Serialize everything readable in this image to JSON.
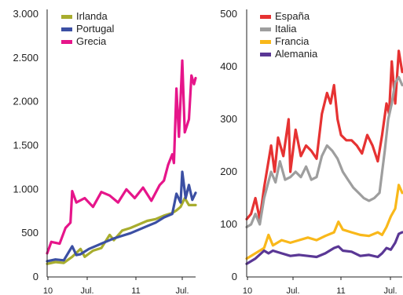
{
  "chart_data": [
    {
      "type": "line",
      "x_tick_labels": [
        "10",
        "Jul.",
        "11",
        "Jul."
      ],
      "y_ticks": [
        0,
        500,
        1000,
        1500,
        2000,
        2500,
        3000
      ],
      "y_tick_labels": [
        "0",
        "500",
        "1.000",
        "1.500",
        "2.000",
        "2.500",
        "3.000"
      ],
      "ylim": [
        0,
        3000
      ],
      "x_range": [
        0,
        1.78
      ],
      "legend_position": "top-left",
      "series": [
        {
          "name": "Irlanda",
          "color": "#a8ad2e",
          "points": [
            [
              0,
              150
            ],
            [
              0.1,
              170
            ],
            [
              0.2,
              160
            ],
            [
              0.3,
              230
            ],
            [
              0.4,
              320
            ],
            [
              0.45,
              230
            ],
            [
              0.55,
              300
            ],
            [
              0.65,
              330
            ],
            [
              0.75,
              480
            ],
            [
              0.8,
              420
            ],
            [
              0.9,
              530
            ],
            [
              1.0,
              560
            ],
            [
              1.1,
              600
            ],
            [
              1.2,
              640
            ],
            [
              1.3,
              660
            ],
            [
              1.4,
              700
            ],
            [
              1.5,
              730
            ],
            [
              1.55,
              760
            ],
            [
              1.6,
              800
            ],
            [
              1.65,
              900
            ],
            [
              1.7,
              820
            ],
            [
              1.78,
              820
            ]
          ]
        },
        {
          "name": "Portugal",
          "color": "#3b4fa3",
          "points": [
            [
              0,
              180
            ],
            [
              0.1,
              200
            ],
            [
              0.2,
              190
            ],
            [
              0.3,
              350
            ],
            [
              0.35,
              250
            ],
            [
              0.4,
              260
            ],
            [
              0.5,
              320
            ],
            [
              0.6,
              360
            ],
            [
              0.7,
              400
            ],
            [
              0.8,
              440
            ],
            [
              0.9,
              470
            ],
            [
              1.0,
              500
            ],
            [
              1.1,
              540
            ],
            [
              1.2,
              580
            ],
            [
              1.3,
              620
            ],
            [
              1.4,
              680
            ],
            [
              1.5,
              720
            ],
            [
              1.55,
              950
            ],
            [
              1.6,
              850
            ],
            [
              1.62,
              1200
            ],
            [
              1.66,
              900
            ],
            [
              1.7,
              1050
            ],
            [
              1.74,
              880
            ],
            [
              1.78,
              960
            ]
          ]
        },
        {
          "name": "Grecia",
          "color": "#e6158a",
          "points": [
            [
              0,
              270
            ],
            [
              0.05,
              400
            ],
            [
              0.15,
              380
            ],
            [
              0.22,
              560
            ],
            [
              0.28,
              620
            ],
            [
              0.3,
              980
            ],
            [
              0.35,
              850
            ],
            [
              0.45,
              900
            ],
            [
              0.55,
              800
            ],
            [
              0.65,
              970
            ],
            [
              0.75,
              930
            ],
            [
              0.85,
              850
            ],
            [
              0.95,
              1000
            ],
            [
              1.05,
              900
            ],
            [
              1.15,
              1020
            ],
            [
              1.25,
              870
            ],
            [
              1.35,
              1050
            ],
            [
              1.4,
              1100
            ],
            [
              1.45,
              1280
            ],
            [
              1.5,
              1400
            ],
            [
              1.52,
              1300
            ],
            [
              1.55,
              2150
            ],
            [
              1.58,
              1600
            ],
            [
              1.62,
              2470
            ],
            [
              1.65,
              1650
            ],
            [
              1.7,
              1800
            ],
            [
              1.73,
              2300
            ],
            [
              1.76,
              2200
            ],
            [
              1.78,
              2270
            ]
          ]
        }
      ]
    },
    {
      "type": "line",
      "x_tick_labels": [
        "10",
        "Jul.",
        "11",
        "Jul."
      ],
      "y_ticks": [
        0,
        100,
        200,
        300,
        400,
        500
      ],
      "y_tick_labels": [
        "0",
        "100",
        "200",
        "300",
        "400",
        "500"
      ],
      "ylim": [
        0,
        500
      ],
      "x_range": [
        0,
        1.78
      ],
      "legend_position": "top-left",
      "series": [
        {
          "name": "España",
          "color": "#e63232",
          "points": [
            [
              0,
              110
            ],
            [
              0.05,
              120
            ],
            [
              0.1,
              150
            ],
            [
              0.15,
              110
            ],
            [
              0.2,
              170
            ],
            [
              0.28,
              250
            ],
            [
              0.32,
              200
            ],
            [
              0.36,
              265
            ],
            [
              0.42,
              230
            ],
            [
              0.48,
              300
            ],
            [
              0.5,
              200
            ],
            [
              0.56,
              280
            ],
            [
              0.62,
              230
            ],
            [
              0.68,
              250
            ],
            [
              0.74,
              240
            ],
            [
              0.8,
              225
            ],
            [
              0.86,
              310
            ],
            [
              0.92,
              350
            ],
            [
              0.96,
              330
            ],
            [
              1.0,
              365
            ],
            [
              1.04,
              300
            ],
            [
              1.08,
              270
            ],
            [
              1.14,
              260
            ],
            [
              1.2,
              260
            ],
            [
              1.26,
              250
            ],
            [
              1.32,
              235
            ],
            [
              1.38,
              270
            ],
            [
              1.44,
              250
            ],
            [
              1.5,
              220
            ],
            [
              1.55,
              270
            ],
            [
              1.6,
              330
            ],
            [
              1.63,
              310
            ],
            [
              1.66,
              410
            ],
            [
              1.7,
              330
            ],
            [
              1.74,
              430
            ],
            [
              1.78,
              390
            ]
          ]
        },
        {
          "name": "Italia",
          "color": "#9e9e9e",
          "points": [
            [
              0,
              95
            ],
            [
              0.05,
              100
            ],
            [
              0.1,
              120
            ],
            [
              0.15,
              100
            ],
            [
              0.2,
              150
            ],
            [
              0.28,
              200
            ],
            [
              0.33,
              180
            ],
            [
              0.38,
              220
            ],
            [
              0.44,
              185
            ],
            [
              0.5,
              190
            ],
            [
              0.56,
              200
            ],
            [
              0.62,
              190
            ],
            [
              0.68,
              210
            ],
            [
              0.74,
              185
            ],
            [
              0.8,
              190
            ],
            [
              0.86,
              230
            ],
            [
              0.92,
              250
            ],
            [
              0.98,
              240
            ],
            [
              1.04,
              225
            ],
            [
              1.1,
              200
            ],
            [
              1.16,
              185
            ],
            [
              1.22,
              170
            ],
            [
              1.28,
              160
            ],
            [
              1.34,
              150
            ],
            [
              1.4,
              145
            ],
            [
              1.46,
              150
            ],
            [
              1.52,
              160
            ],
            [
              1.58,
              240
            ],
            [
              1.62,
              300
            ],
            [
              1.66,
              330
            ],
            [
              1.7,
              370
            ],
            [
              1.74,
              380
            ],
            [
              1.78,
              365
            ]
          ]
        },
        {
          "name": "Francia",
          "color": "#f9b81a",
          "points": [
            [
              0,
              35
            ],
            [
              0.1,
              45
            ],
            [
              0.2,
              55
            ],
            [
              0.25,
              80
            ],
            [
              0.3,
              60
            ],
            [
              0.4,
              70
            ],
            [
              0.5,
              65
            ],
            [
              0.6,
              70
            ],
            [
              0.7,
              75
            ],
            [
              0.8,
              70
            ],
            [
              0.9,
              78
            ],
            [
              1.0,
              85
            ],
            [
              1.05,
              105
            ],
            [
              1.1,
              90
            ],
            [
              1.2,
              85
            ],
            [
              1.3,
              80
            ],
            [
              1.4,
              78
            ],
            [
              1.5,
              85
            ],
            [
              1.55,
              80
            ],
            [
              1.6,
              95
            ],
            [
              1.65,
              115
            ],
            [
              1.7,
              130
            ],
            [
              1.74,
              175
            ],
            [
              1.78,
              160
            ]
          ]
        },
        {
          "name": "Alemania",
          "color": "#5a3795",
          "points": [
            [
              0,
              25
            ],
            [
              0.1,
              35
            ],
            [
              0.2,
              50
            ],
            [
              0.25,
              45
            ],
            [
              0.3,
              50
            ],
            [
              0.4,
              45
            ],
            [
              0.5,
              40
            ],
            [
              0.6,
              42
            ],
            [
              0.7,
              40
            ],
            [
              0.8,
              38
            ],
            [
              0.9,
              45
            ],
            [
              1.0,
              55
            ],
            [
              1.05,
              58
            ],
            [
              1.1,
              50
            ],
            [
              1.2,
              48
            ],
            [
              1.3,
              40
            ],
            [
              1.4,
              42
            ],
            [
              1.5,
              38
            ],
            [
              1.55,
              45
            ],
            [
              1.6,
              55
            ],
            [
              1.65,
              52
            ],
            [
              1.7,
              65
            ],
            [
              1.74,
              82
            ],
            [
              1.78,
              85
            ]
          ]
        }
      ]
    }
  ]
}
